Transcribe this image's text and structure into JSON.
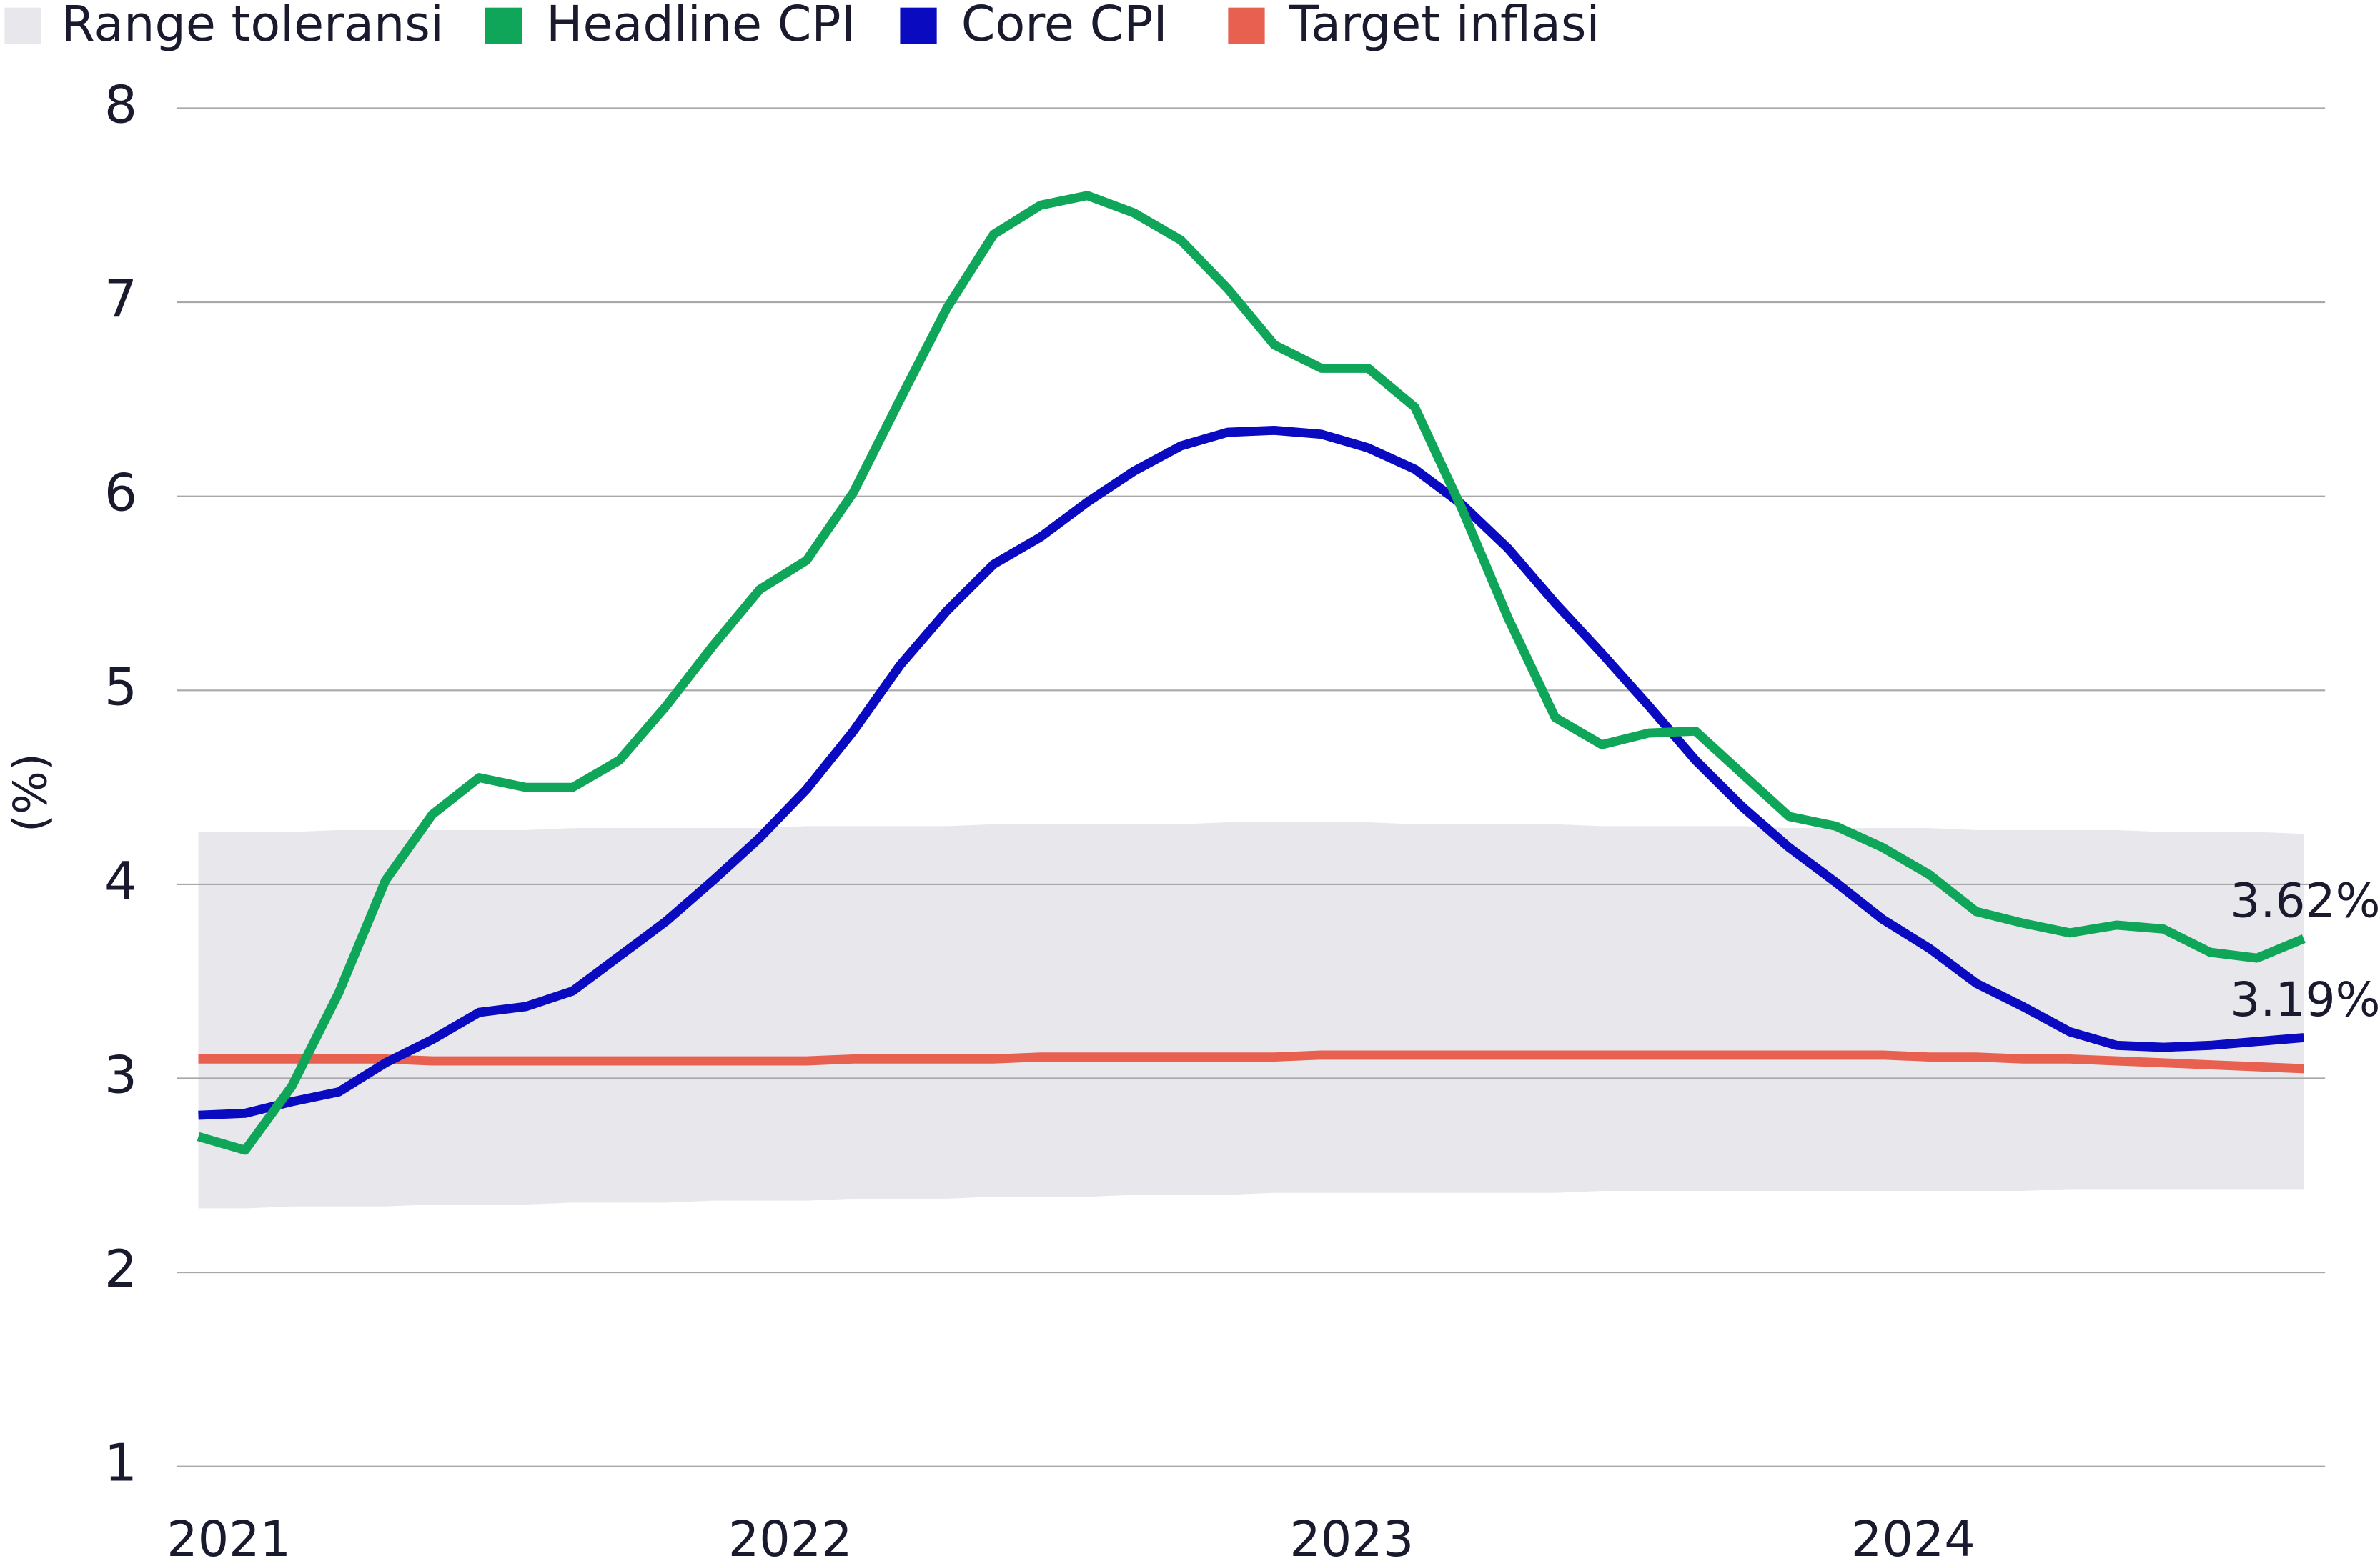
{
  "chart_data": {
    "type": "line",
    "y_label": "(%)",
    "categories": [
      "2021",
      null,
      null,
      null,
      null,
      null,
      null,
      null,
      null,
      null,
      null,
      null,
      "2022",
      null,
      null,
      null,
      null,
      null,
      null,
      null,
      null,
      null,
      null,
      null,
      "2023",
      null,
      null,
      null,
      null,
      null,
      null,
      null,
      null,
      null,
      null,
      null,
      "2024",
      null,
      null,
      null,
      null,
      null,
      null,
      null,
      null,
      null
    ],
    "ylim": [
      1,
      8
    ],
    "yticks": [
      1,
      2,
      3,
      4,
      5,
      6,
      7,
      8
    ],
    "grid": true,
    "legend": "top",
    "band": {
      "name": "Range toleransi",
      "color": "#e8e8ec",
      "upper": [
        4.27,
        4.27,
        4.27,
        4.28,
        4.28,
        4.28,
        4.28,
        4.28,
        4.29,
        4.29,
        4.29,
        4.29,
        4.29,
        4.3,
        4.3,
        4.3,
        4.3,
        4.31,
        4.31,
        4.31,
        4.31,
        4.31,
        4.32,
        4.32,
        4.32,
        4.32,
        4.31,
        4.31,
        4.31,
        4.31,
        4.3,
        4.3,
        4.3,
        4.3,
        4.29,
        4.29,
        4.29,
        4.29,
        4.28,
        4.28,
        4.28,
        4.28,
        4.27,
        4.27,
        4.27,
        4.26
      ],
      "lower": [
        2.33,
        2.33,
        2.34,
        2.34,
        2.34,
        2.35,
        2.35,
        2.35,
        2.36,
        2.36,
        2.36,
        2.37,
        2.37,
        2.37,
        2.38,
        2.38,
        2.38,
        2.39,
        2.39,
        2.39,
        2.4,
        2.4,
        2.4,
        2.41,
        2.41,
        2.41,
        2.41,
        2.41,
        2.41,
        2.41,
        2.42,
        2.42,
        2.42,
        2.42,
        2.42,
        2.42,
        2.42,
        2.42,
        2.42,
        2.42,
        2.43,
        2.43,
        2.43,
        2.43,
        2.43,
        2.43
      ]
    },
    "series": [
      {
        "name": "Headline CPI",
        "color": "#0fa65a",
        "values": [
          2.7,
          2.63,
          2.96,
          3.44,
          4.02,
          4.36,
          4.55,
          4.5,
          4.5,
          4.64,
          4.92,
          5.23,
          5.52,
          5.67,
          6.02,
          6.5,
          6.97,
          7.35,
          7.5,
          7.55,
          7.46,
          7.32,
          7.07,
          6.78,
          6.66,
          6.66,
          6.46,
          5.94,
          5.37,
          4.86,
          4.72,
          4.78,
          4.79,
          4.57,
          4.35,
          4.3,
          4.19,
          4.05,
          3.86,
          3.8,
          3.75,
          3.79,
          3.77,
          3.65,
          3.62,
          3.72
        ]
      },
      {
        "name": "Core CPI",
        "color": "#0a0ac0",
        "values": [
          2.81,
          2.82,
          2.88,
          2.93,
          3.08,
          3.2,
          3.34,
          3.37,
          3.45,
          3.63,
          3.81,
          4.02,
          4.24,
          4.49,
          4.79,
          5.13,
          5.41,
          5.65,
          5.79,
          5.97,
          6.13,
          6.26,
          6.33,
          6.34,
          6.32,
          6.25,
          6.14,
          5.96,
          5.73,
          5.45,
          5.19,
          4.92,
          4.64,
          4.4,
          4.19,
          4.01,
          3.82,
          3.67,
          3.49,
          3.37,
          3.24,
          3.17,
          3.16,
          3.17,
          3.19,
          3.21
        ]
      },
      {
        "name": "Target inflasi",
        "color": "#e8604f",
        "values": [
          3.1,
          3.1,
          3.1,
          3.1,
          3.1,
          3.09,
          3.09,
          3.09,
          3.09,
          3.09,
          3.09,
          3.09,
          3.09,
          3.09,
          3.1,
          3.1,
          3.1,
          3.1,
          3.11,
          3.11,
          3.11,
          3.11,
          3.11,
          3.11,
          3.12,
          3.12,
          3.12,
          3.12,
          3.12,
          3.12,
          3.12,
          3.12,
          3.12,
          3.12,
          3.12,
          3.12,
          3.12,
          3.11,
          3.11,
          3.1,
          3.1,
          3.09,
          3.08,
          3.07,
          3.06,
          3.05
        ]
      }
    ],
    "annotations": [
      "3.62%",
      "3.19%"
    ]
  }
}
